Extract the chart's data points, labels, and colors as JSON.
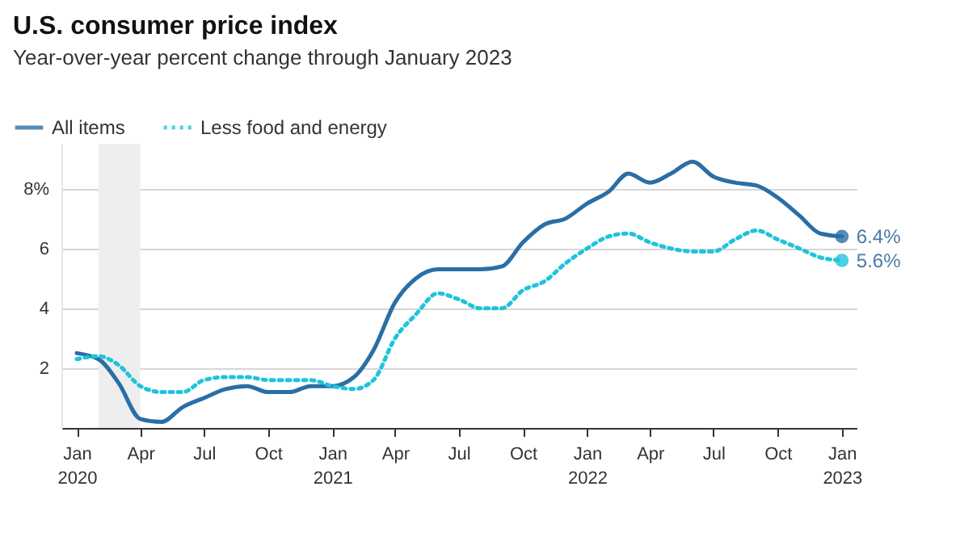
{
  "chart_data": {
    "type": "line",
    "title": "U.S. consumer price index",
    "subtitle": "Year-over-year percent change through January 2023",
    "x": [
      "2020-01",
      "2020-02",
      "2020-03",
      "2020-04",
      "2020-05",
      "2020-06",
      "2020-07",
      "2020-08",
      "2020-09",
      "2020-10",
      "2020-11",
      "2020-12",
      "2021-01",
      "2021-02",
      "2021-03",
      "2021-04",
      "2021-05",
      "2021-06",
      "2021-07",
      "2021-08",
      "2021-09",
      "2021-10",
      "2021-11",
      "2021-12",
      "2022-01",
      "2022-02",
      "2022-03",
      "2022-04",
      "2022-05",
      "2022-06",
      "2022-07",
      "2022-08",
      "2022-09",
      "2022-10",
      "2022-11",
      "2022-12",
      "2023-01"
    ],
    "series": [
      {
        "name": "All items",
        "color": "#2a6ea6",
        "line_style": "solid",
        "values": [
          2.5,
          2.3,
          1.5,
          0.3,
          0.2,
          0.7,
          1.0,
          1.3,
          1.4,
          1.2,
          1.2,
          1.4,
          1.4,
          1.7,
          2.6,
          4.2,
          5.0,
          5.3,
          5.3,
          5.3,
          5.4,
          6.2,
          6.8,
          7.0,
          7.5,
          7.9,
          8.5,
          8.2,
          8.5,
          8.9,
          8.4,
          8.2,
          8.1,
          7.7,
          7.1,
          6.5,
          6.4
        ]
      },
      {
        "name": "Less food and energy",
        "color": "#1fc3dc",
        "line_style": "dotted",
        "values": [
          2.3,
          2.4,
          2.1,
          1.4,
          1.2,
          1.2,
          1.6,
          1.7,
          1.7,
          1.6,
          1.6,
          1.6,
          1.4,
          1.3,
          1.6,
          3.0,
          3.8,
          4.5,
          4.3,
          4.0,
          4.0,
          4.6,
          4.9,
          5.5,
          6.0,
          6.4,
          6.5,
          6.2,
          6.0,
          5.9,
          5.9,
          6.3,
          6.6,
          6.3,
          6.0,
          5.7,
          5.6
        ]
      }
    ],
    "annotations": [
      {
        "text": "6.4%",
        "x": "2023-01",
        "y": 6.4
      },
      {
        "text": "5.6%",
        "x": "2023-01",
        "y": 5.6
      }
    ],
    "bands": [
      {
        "axis": "x",
        "from": "2020-02",
        "to": "2020-04",
        "color": "#eeeeee"
      }
    ],
    "xlim": [
      "2019-12-10",
      "2023-01-22"
    ],
    "xticks": [
      {
        "value": "2020-01",
        "label": "Jan 2020"
      },
      {
        "value": "2020-04",
        "label": "Apr"
      },
      {
        "value": "2020-07",
        "label": "Jul"
      },
      {
        "value": "2020-10",
        "label": "Oct"
      },
      {
        "value": "2021-01",
        "label": "Jan 2021"
      },
      {
        "value": "2021-04",
        "label": "Apr"
      },
      {
        "value": "2021-07",
        "label": "Jul"
      },
      {
        "value": "2021-10",
        "label": "Oct"
      },
      {
        "value": "2022-01",
        "label": "Jan 2022"
      },
      {
        "value": "2022-04",
        "label": "Apr"
      },
      {
        "value": "2022-07",
        "label": "Jul"
      },
      {
        "value": "2022-10",
        "label": "Oct"
      },
      {
        "value": "2023-01",
        "label": "Jan 2023"
      }
    ],
    "ylim": [
      0,
      9.5
    ],
    "yticks": [
      2,
      4,
      6,
      {
        "value": 8,
        "label": "8%"
      }
    ],
    "grid": "y",
    "legend": "top left"
  }
}
